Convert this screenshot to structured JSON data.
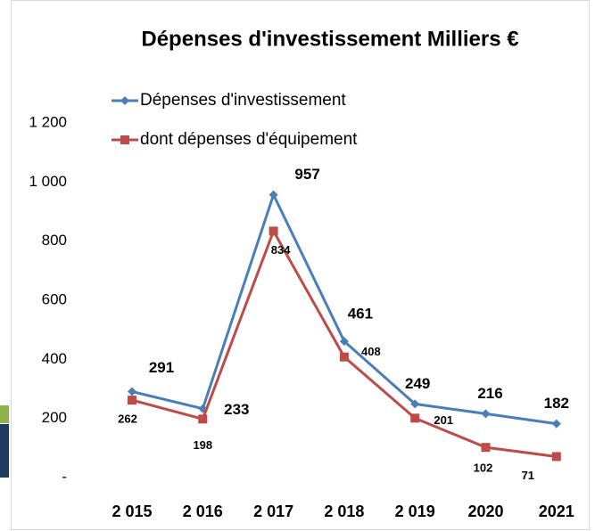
{
  "chart_data": {
    "type": "line",
    "title": "Dépenses d'investissement  Milliers €",
    "categories": [
      "2 015",
      "2 016",
      "2 017",
      "2 018",
      "2 019",
      "2020",
      "2021"
    ],
    "series": [
      {
        "name": "Dépenses d'investissement",
        "color": "#4a7ebb",
        "marker": "diamond",
        "values": [
          291,
          233,
          957,
          461,
          249,
          216,
          182
        ]
      },
      {
        "name": "dont dépenses d'équipement",
        "color": "#be4b48",
        "marker": "square",
        "values": [
          262,
          198,
          834,
          408,
          201,
          102,
          71
        ]
      }
    ],
    "ylim": [
      0,
      1200
    ],
    "yticks": [
      {
        "value": 0,
        "label": "-"
      },
      200,
      400,
      600,
      800,
      {
        "value": 1000,
        "label": "1 000"
      },
      {
        "value": 1200,
        "label": "1 200"
      }
    ],
    "grid": false,
    "legend": "top-left"
  }
}
